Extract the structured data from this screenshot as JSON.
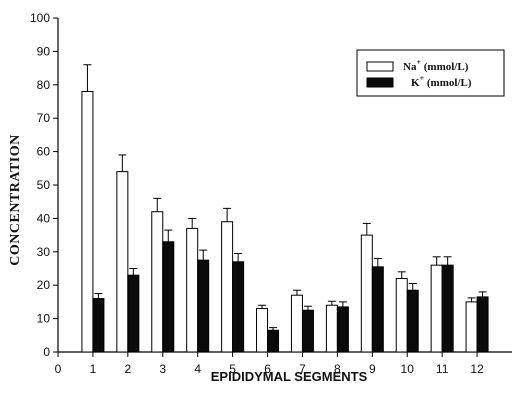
{
  "chart_data": {
    "type": "bar",
    "title": "",
    "xlabel": "EPIDIDYMAL SEGMENTS",
    "ylabel": "CONCENTRATION",
    "x_ticks": [
      "0",
      "1",
      "2",
      "3",
      "4",
      "5",
      "6",
      "7",
      "8",
      "9",
      "10",
      "11",
      "12"
    ],
    "categories": [
      "1",
      "2",
      "3",
      "4",
      "5",
      "6",
      "7",
      "8",
      "9",
      "10",
      "11",
      "12"
    ],
    "ylim": [
      0,
      100
    ],
    "y_ticks": [
      "0",
      "10",
      "20",
      "30",
      "40",
      "50",
      "60",
      "70",
      "80",
      "90",
      "100"
    ],
    "grid": false,
    "legend_position": "top-right",
    "series": [
      {
        "name_main": "Na",
        "name_sup": "+",
        "name_unit": " (mmol/L)",
        "fill": "#ffffff",
        "values": [
          78,
          54,
          42,
          37,
          39,
          13,
          17,
          14,
          35,
          22,
          26,
          15
        ],
        "errors": [
          8,
          5,
          4,
          3,
          4,
          1,
          1.5,
          1.2,
          3.5,
          2,
          2.5,
          1.2
        ]
      },
      {
        "name_main": "K",
        "name_sup": "+",
        "name_unit": " (mmol/L)",
        "fill": "#0a0a0a",
        "values": [
          16,
          23,
          33,
          27.5,
          27,
          6.5,
          12.5,
          13.5,
          25.5,
          18.5,
          26,
          16.5
        ],
        "errors": [
          1.5,
          2,
          3.5,
          3,
          2.5,
          0.8,
          1.2,
          1.5,
          2.5,
          2,
          2.5,
          1.5
        ]
      }
    ]
  }
}
